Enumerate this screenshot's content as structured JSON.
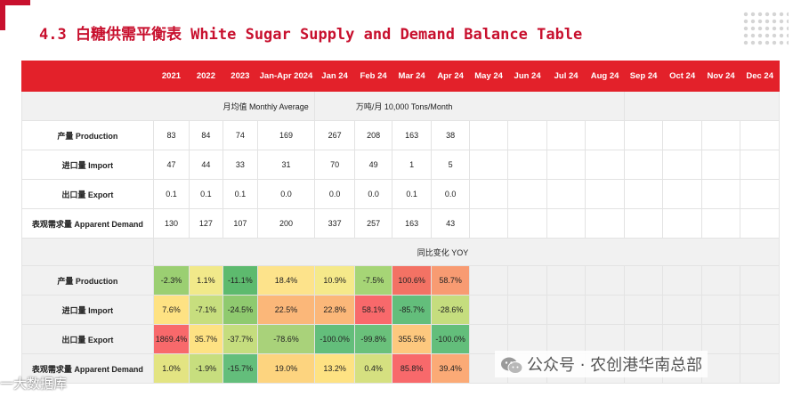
{
  "title": "4.3 白糖供需平衡表 White Sugar Supply and Demand Balance Table",
  "colors": {
    "accent": "#c8102e",
    "header_bg": "#e3212a"
  },
  "table": {
    "columns": [
      "2021",
      "2022",
      "2023",
      "Jan-Apr 2024",
      "Jan 24",
      "Feb 24",
      "Mar 24",
      "Apr 24",
      "May 24",
      "Jun 24",
      "Jul 24",
      "Aug 24",
      "Sep 24",
      "Oct 24",
      "Nov 24",
      "Dec 24"
    ],
    "unit_left": "月均值  Monthly Average",
    "unit_right": "万吨/月  10,000 Tons/Month",
    "rows": [
      {
        "label": "产量 Production",
        "values": [
          "83",
          "84",
          "74",
          "169",
          "267",
          "208",
          "163",
          "38"
        ]
      },
      {
        "label": "进口量 Import",
        "values": [
          "47",
          "44",
          "33",
          "31",
          "70",
          "49",
          "1",
          "5"
        ]
      },
      {
        "label": "出口量 Export",
        "values": [
          "0.1",
          "0.1",
          "0.1",
          "0.0",
          "0.0",
          "0.0",
          "0.1",
          "0.0"
        ]
      },
      {
        "label": "表观需求量 Apparent Demand",
        "values": [
          "130",
          "127",
          "107",
          "200",
          "337",
          "257",
          "163",
          "43"
        ]
      }
    ],
    "yoy_title": "同比变化 YOY",
    "yoy_rows": [
      {
        "label": "产量 Production",
        "values": [
          "-2.3%",
          "1.1%",
          "-11.1%",
          "18.4%",
          "10.9%",
          "-7.5%",
          "100.6%",
          "58.7%"
        ],
        "colors": [
          "#9bcf72",
          "#f1e98a",
          "#5dba6e",
          "#fde38b",
          "#f5e98a",
          "#a6d576",
          "#f37264",
          "#f89b72"
        ]
      },
      {
        "label": "进口量 Import",
        "values": [
          "7.6%",
          "-7.1%",
          "-24.5%",
          "22.5%",
          "22.8%",
          "58.1%",
          "-85.7%",
          "-28.6%"
        ],
        "colors": [
          "#fee283",
          "#c7de7e",
          "#8fca6f",
          "#fbb779",
          "#fbb779",
          "#f8696b",
          "#63be7b",
          "#c5dd7e"
        ]
      },
      {
        "label": "出口量 Export",
        "values": [
          "1869.4%",
          "35.7%",
          "-37.7%",
          "-78.6%",
          "-100.0%",
          "-99.8%",
          "355.5%",
          "-100.0%"
        ],
        "colors": [
          "#f8696b",
          "#fee283",
          "#c5dd7e",
          "#a9d27a",
          "#63be7b",
          "#6ac17b",
          "#fdc87e",
          "#63be7b"
        ]
      },
      {
        "label": "表观需求量 Apparent Demand",
        "values": [
          "1.0%",
          "-1.9%",
          "-15.7%",
          "19.0%",
          "13.2%",
          "0.4%",
          "85.8%",
          "39.4%"
        ],
        "colors": [
          "#e3e482",
          "#c7de7e",
          "#63be7b",
          "#fdd47f",
          "#fee283",
          "#d5e080",
          "#f8696b",
          "#fbaa76"
        ]
      }
    ]
  },
  "watermark": "公众号 · 农创港华南总部",
  "watermark_left": "一大数据库"
}
